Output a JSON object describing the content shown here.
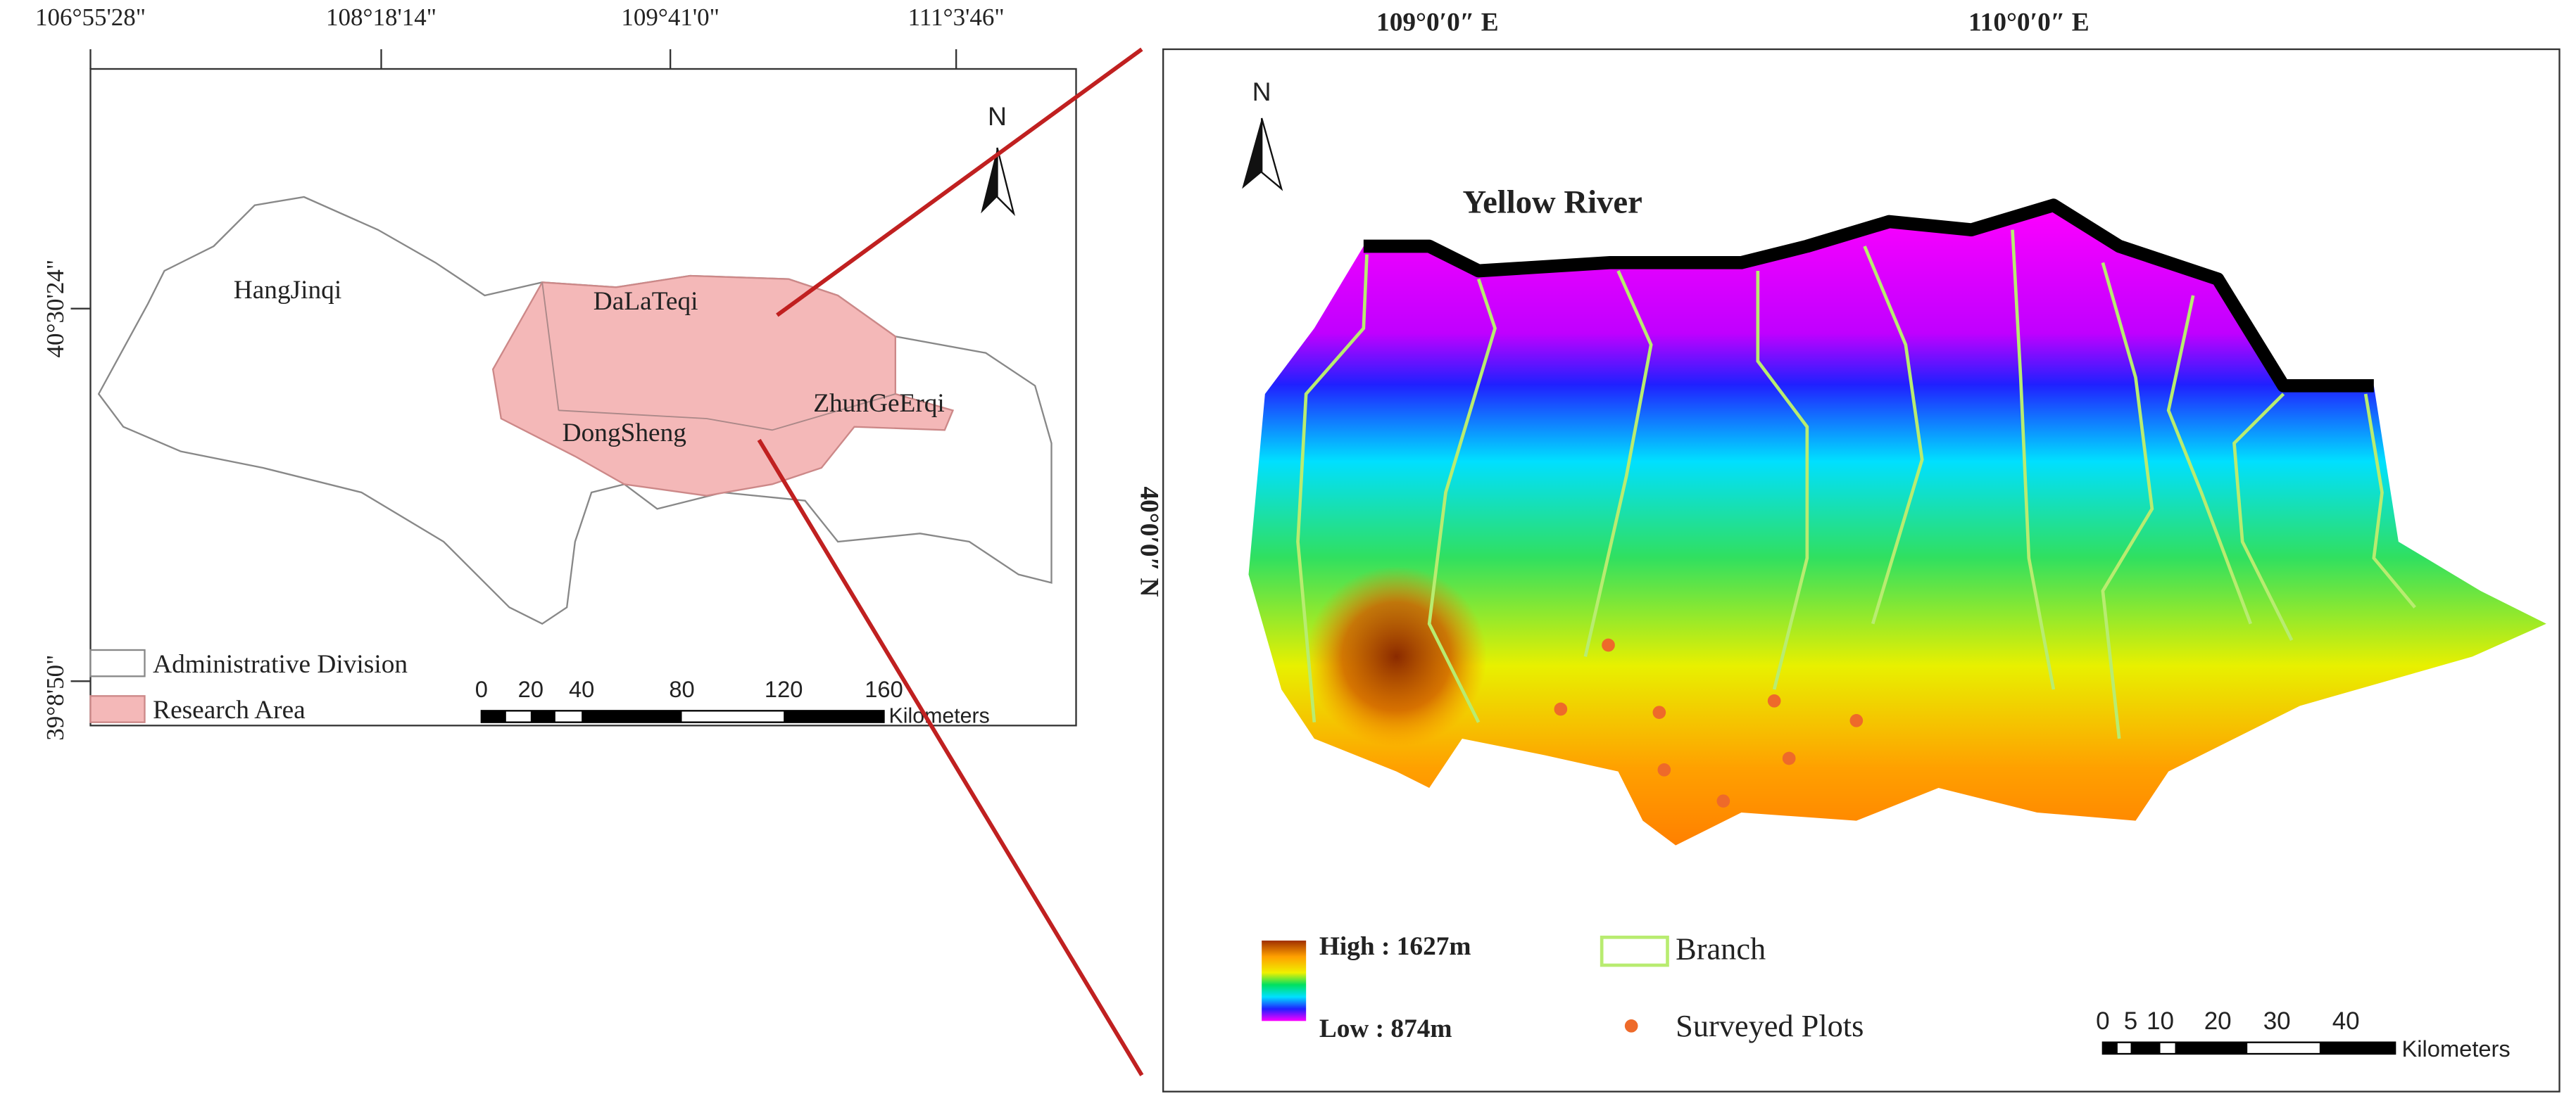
{
  "left_map": {
    "lon_labels": [
      "106°55'28\"",
      "108°18'14\"",
      "109°41'0\"",
      "111°3'46\""
    ],
    "lat_labels": [
      "40°30'24\"",
      "39°8'50\""
    ],
    "north": "N",
    "places": [
      "HangJinqi",
      "DaLaTeqi",
      "DongSheng",
      "ZhunGeErqi"
    ],
    "legend": [
      "Administrative Division",
      "Research Area"
    ],
    "scale_labels": [
      "0",
      "20",
      "40",
      "80",
      "120",
      "160"
    ],
    "scale_unit": "Kilometers"
  },
  "right_map": {
    "lon_labels": [
      "109°0′0″ E",
      "110°0′0″ E"
    ],
    "lat_label": "40°0′0″ N",
    "north": "N",
    "river": "Yellow River",
    "legend_high": "High : 1627m",
    "legend_low": "Low : 874m",
    "legend_branch": "Branch",
    "legend_plots": "Surveyed Plots",
    "scale_labels": [
      "0",
      "5",
      "10",
      "20",
      "30",
      "40"
    ],
    "scale_unit": "Kilometers"
  }
}
